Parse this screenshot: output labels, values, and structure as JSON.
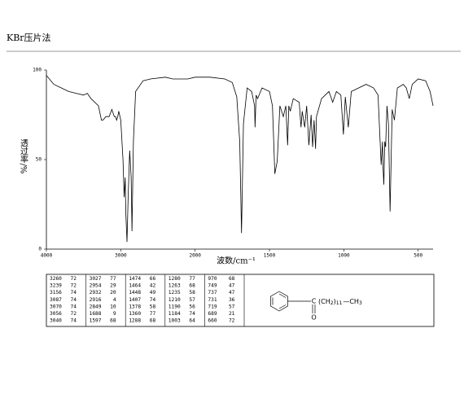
{
  "header": {
    "title": "KBr压片法"
  },
  "chart_data": {
    "type": "line",
    "x_label": "波数/cm⁻¹",
    "y_label": "透过率/%",
    "color": "#000000",
    "xlim": [
      4000,
      400
    ],
    "xticks": [
      4000,
      3000,
      2000,
      1500,
      1000,
      500
    ],
    "ylim": [
      0,
      100
    ],
    "yticks": [
      0,
      50,
      100
    ],
    "x": [
      4000,
      3900,
      3800,
      3700,
      3600,
      3500,
      3450,
      3400,
      3300,
      3260,
      3239,
      3200,
      3156,
      3120,
      3087,
      3070,
      3056,
      3040,
      3027,
      3000,
      2970,
      2954,
      2940,
      2932,
      2916,
      2900,
      2880,
      2860,
      2849,
      2830,
      2800,
      2700,
      2600,
      2400,
      2300,
      2200,
      2100,
      2000,
      1900,
      1800,
      1750,
      1720,
      1700,
      1688,
      1675,
      1650,
      1620,
      1600,
      1597,
      1590,
      1580,
      1550,
      1500,
      1480,
      1474,
      1464,
      1448,
      1430,
      1407,
      1390,
      1378,
      1370,
      1360,
      1340,
      1300,
      1288,
      1280,
      1263,
      1250,
      1235,
      1220,
      1210,
      1200,
      1190,
      1184,
      1150,
      1100,
      1075,
      1050,
      1020,
      1003,
      990,
      970,
      950,
      900,
      850,
      800,
      770,
      749,
      740,
      737,
      731,
      725,
      719,
      710,
      700,
      689,
      675,
      660,
      640,
      600,
      580,
      560,
      540,
      500,
      450,
      420,
      400
    ],
    "values": [
      97,
      92,
      90,
      88,
      87,
      86,
      87,
      84,
      80,
      72,
      72,
      74,
      74,
      78,
      74,
      74,
      72,
      74,
      77,
      72,
      50,
      29,
      40,
      20,
      4,
      30,
      55,
      40,
      10,
      60,
      88,
      94,
      95,
      96,
      95,
      95,
      95,
      96,
      96,
      95,
      93,
      85,
      60,
      9,
      70,
      90,
      88,
      80,
      68,
      86,
      84,
      90,
      88,
      80,
      66,
      42,
      49,
      80,
      74,
      80,
      58,
      80,
      77,
      84,
      82,
      68,
      77,
      68,
      80,
      58,
      75,
      57,
      72,
      56,
      74,
      84,
      88,
      82,
      88,
      86,
      64,
      85,
      68,
      88,
      90,
      92,
      90,
      86,
      47,
      60,
      47,
      36,
      60,
      57,
      80,
      70,
      21,
      78,
      72,
      90,
      92,
      90,
      84,
      92,
      95,
      94,
      88,
      80
    ]
  },
  "table": {
    "peaks": [
      [
        3260,
        72
      ],
      [
        3239,
        72
      ],
      [
        3156,
        74
      ],
      [
        3087,
        74
      ],
      [
        3070,
        74
      ],
      [
        3056,
        72
      ],
      [
        3040,
        74
      ],
      [
        3027,
        77
      ],
      [
        2954,
        29
      ],
      [
        2932,
        20
      ],
      [
        2916,
        4
      ],
      [
        2849,
        10
      ],
      [
        1688,
        9
      ],
      [
        1597,
        68
      ],
      [
        1474,
        66
      ],
      [
        1464,
        42
      ],
      [
        1448,
        49
      ],
      [
        1407,
        74
      ],
      [
        1378,
        58
      ],
      [
        1360,
        77
      ],
      [
        1288,
        68
      ],
      [
        1280,
        77
      ],
      [
        1263,
        68
      ],
      [
        1235,
        58
      ],
      [
        1210,
        57
      ],
      [
        1190,
        56
      ],
      [
        1184,
        74
      ],
      [
        1003,
        64
      ],
      [
        970,
        68
      ],
      [
        749,
        47
      ],
      [
        737,
        47
      ],
      [
        731,
        36
      ],
      [
        719,
        57
      ],
      [
        689,
        21
      ],
      [
        660,
        72
      ]
    ]
  },
  "structure": {
    "carbonyl": "C",
    "oxygen": "O",
    "chain": [
      "(CH",
      "2",
      ")",
      "11",
      "—CH",
      "3"
    ]
  }
}
